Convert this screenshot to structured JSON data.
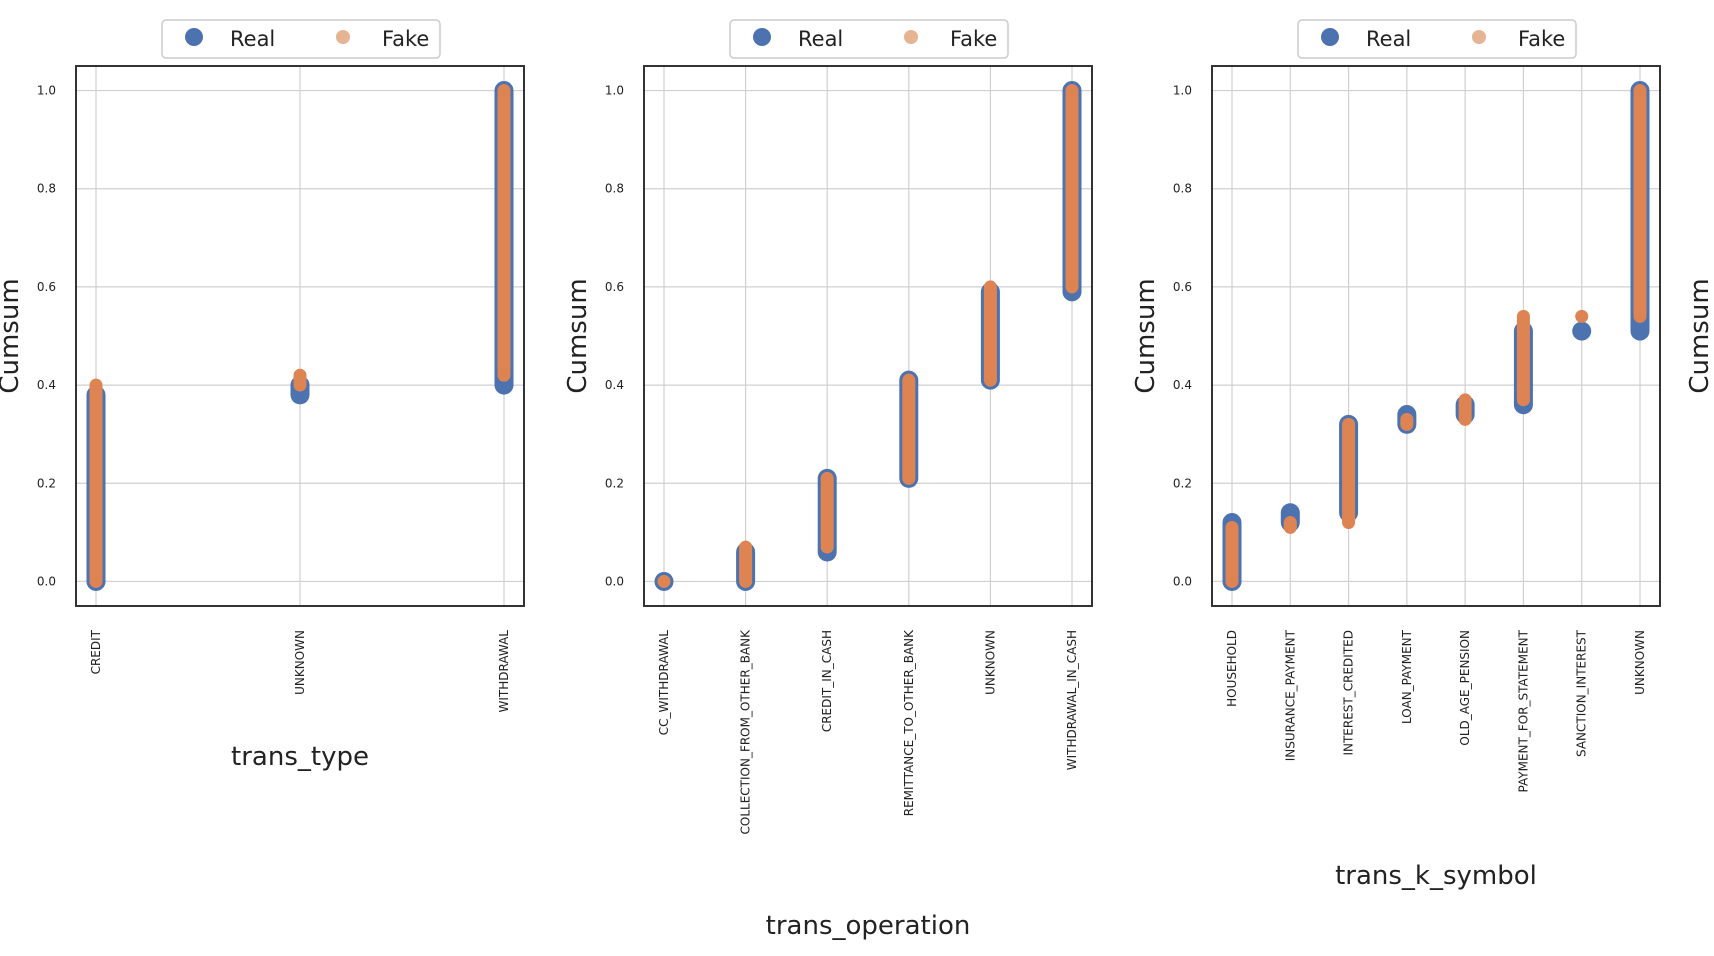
{
  "colors": {
    "real": "#4C72B0",
    "fake": "#DD8452",
    "fake_light": "#E6B393",
    "grid": "#d0d0d0",
    "frame": "#333333",
    "text": "#222222"
  },
  "legend": {
    "real_label": "Real",
    "fake_label": "Fake"
  },
  "chart_data": [
    {
      "type": "scatter",
      "ylabel": "Cumsum",
      "xlabel": "trans_type",
      "ylim": [
        -0.05,
        1.05
      ],
      "yticks": [
        "0.0",
        "0.2",
        "0.4",
        "0.6",
        "0.8",
        "1.0"
      ],
      "grid": true,
      "legend_position": "top-center",
      "categories": [
        "CREDIT",
        "UNKNOWN",
        "WITHDRAWAL"
      ],
      "series": [
        {
          "name": "Real",
          "ranges": [
            [
              0.0,
              0.38
            ],
            [
              0.38,
              0.4
            ],
            [
              0.4,
              1.0
            ]
          ]
        },
        {
          "name": "Fake",
          "ranges": [
            [
              0.0,
              0.4
            ],
            [
              0.4,
              0.42
            ],
            [
              0.42,
              1.0
            ]
          ]
        }
      ]
    },
    {
      "type": "scatter",
      "ylabel": "Cumsum",
      "xlabel": "trans_operation",
      "ylim": [
        -0.05,
        1.05
      ],
      "yticks": [
        "0.0",
        "0.2",
        "0.4",
        "0.6",
        "0.8",
        "1.0"
      ],
      "grid": true,
      "legend_position": "top-center",
      "categories": [
        "CC_WITHDRAWAL",
        "COLLECTION_FROM_OTHER_BANK",
        "CREDIT_IN_CASH",
        "REMITTANCE_TO_OTHER_BANK",
        "UNKNOWN",
        "WITHDRAWAL_IN_CASH"
      ],
      "series": [
        {
          "name": "Real",
          "ranges": [
            [
              0.0,
              0.0
            ],
            [
              0.0,
              0.06
            ],
            [
              0.06,
              0.21
            ],
            [
              0.21,
              0.41
            ],
            [
              0.41,
              0.59
            ],
            [
              0.59,
              1.0
            ]
          ]
        },
        {
          "name": "Fake",
          "ranges": [
            [
              0.0,
              0.0
            ],
            [
              0.0,
              0.07
            ],
            [
              0.07,
              0.21
            ],
            [
              0.21,
              0.41
            ],
            [
              0.41,
              0.6
            ],
            [
              0.6,
              1.0
            ]
          ]
        }
      ]
    },
    {
      "type": "scatter",
      "ylabel": "Cumsum",
      "xlabel": "trans_k_symbol",
      "ylim": [
        -0.05,
        1.05
      ],
      "yticks": [
        "0.0",
        "0.2",
        "0.4",
        "0.6",
        "0.8",
        "1.0"
      ],
      "grid": true,
      "legend_position": "top-center",
      "categories": [
        "HOUSEHOLD",
        "INSURANCE_PAYMENT",
        "INTEREST_CREDITED",
        "LOAN_PAYMENT",
        "OLD_AGE_PENSION",
        "PAYMENT_FOR_STATEMENT",
        "SANCTION_INTEREST",
        "UNKNOWN"
      ],
      "series": [
        {
          "name": "Real",
          "ranges": [
            [
              0.0,
              0.12
            ],
            [
              0.12,
              0.14
            ],
            [
              0.14,
              0.32
            ],
            [
              0.32,
              0.34
            ],
            [
              0.34,
              0.36
            ],
            [
              0.36,
              0.51
            ],
            [
              0.51,
              0.51
            ],
            [
              0.51,
              1.0
            ]
          ]
        },
        {
          "name": "Fake",
          "ranges": [
            [
              0.0,
              0.11
            ],
            [
              0.11,
              0.12
            ],
            [
              0.12,
              0.32
            ],
            [
              0.32,
              0.33
            ],
            [
              0.33,
              0.37
            ],
            [
              0.37,
              0.54
            ],
            [
              0.54,
              0.54
            ],
            [
              0.54,
              1.0
            ]
          ]
        }
      ]
    }
  ],
  "clipped_fourth_panel": {
    "ylabel": "Cumsum"
  }
}
